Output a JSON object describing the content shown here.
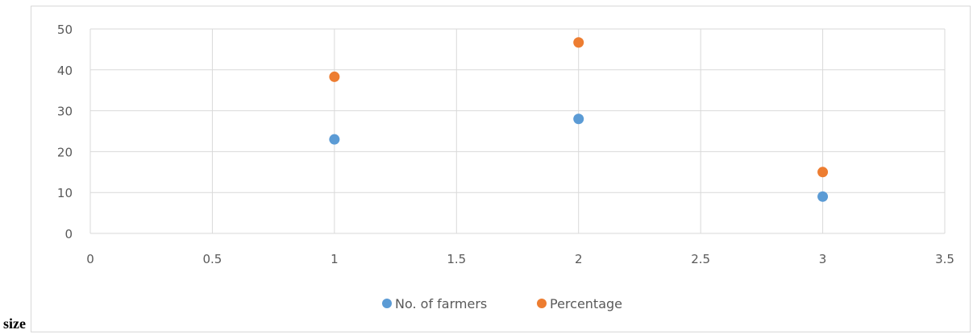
{
  "header_text": "",
  "side_text": "size",
  "chart_data": {
    "type": "scatter",
    "title": "",
    "xlabel": "",
    "ylabel": "",
    "xlim": [
      0,
      3.5
    ],
    "ylim": [
      0,
      50
    ],
    "x_ticks": [
      0,
      0.5,
      1,
      1.5,
      2,
      2.5,
      3,
      3.5
    ],
    "y_ticks": [
      0,
      10,
      20,
      30,
      40,
      50
    ],
    "grid": true,
    "legend_position": "bottom",
    "series": [
      {
        "name": "No. of farmers",
        "color": "#5b9bd5",
        "points": [
          [
            1,
            23
          ],
          [
            2,
            28
          ],
          [
            3,
            9
          ]
        ]
      },
      {
        "name": "Percentage",
        "color": "#ed7d31",
        "points": [
          [
            1,
            38.3
          ],
          [
            2,
            46.7
          ],
          [
            3,
            15
          ]
        ]
      }
    ]
  }
}
